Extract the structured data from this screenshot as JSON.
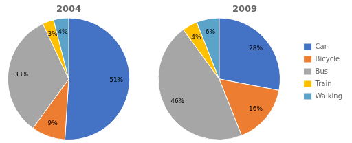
{
  "chart_data": [
    {
      "type": "pie",
      "title": "2004",
      "categories": [
        "Car",
        "Bicycle",
        "Bus",
        "Train",
        "Walking"
      ],
      "values": [
        51,
        9,
        33,
        3,
        4
      ],
      "value_labels": [
        "51%",
        "9%",
        "33%",
        "3%",
        "4%"
      ],
      "colors": [
        "#4472C4",
        "#ED7D31",
        "#A6A6A6",
        "#FFC000",
        "#5BA3C9"
      ],
      "data_labels": true
    },
    {
      "type": "pie",
      "title": "2009",
      "categories": [
        "Car",
        "Bicycle",
        "Bus",
        "Train",
        "Walking"
      ],
      "values": [
        28,
        16,
        46,
        4,
        6
      ],
      "value_labels": [
        "28%",
        "16%",
        "46%",
        "4%",
        "6%"
      ],
      "colors": [
        "#4472C4",
        "#ED7D31",
        "#A6A6A6",
        "#FFC000",
        "#5BA3C9"
      ],
      "data_labels": true,
      "legend": "right"
    }
  ]
}
